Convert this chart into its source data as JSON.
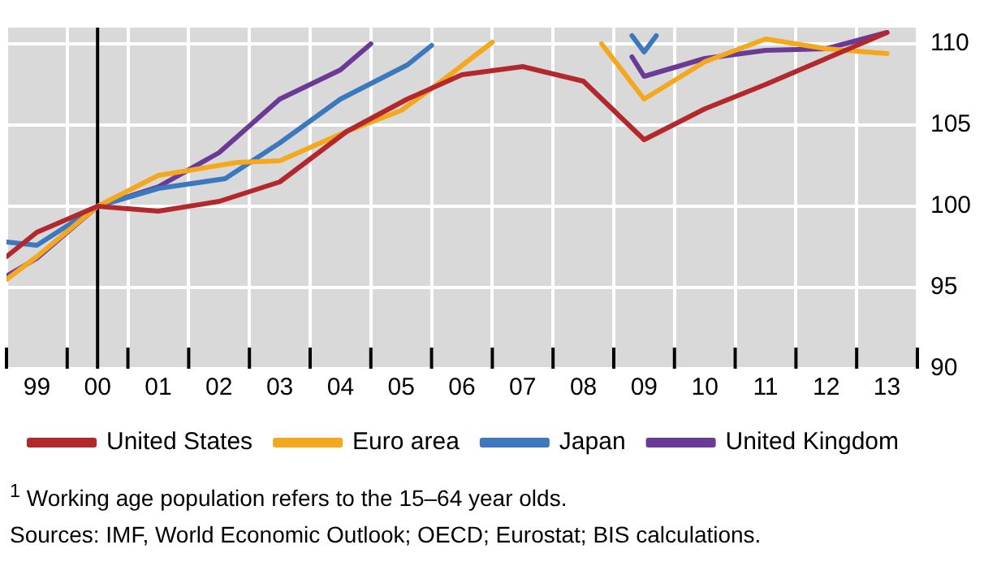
{
  "chart_data": {
    "type": "line",
    "xlim": [
      1998.5,
      2013.5
    ],
    "ylim": [
      90,
      111
    ],
    "xticks": [
      {
        "value": 1998.5,
        "label": null
      },
      {
        "value": 1999,
        "label": "99"
      },
      {
        "value": 1999.5,
        "label": null
      },
      {
        "value": 2000,
        "label": "00"
      },
      {
        "value": 2000.5,
        "label": null
      },
      {
        "value": 2001,
        "label": "01"
      },
      {
        "value": 2001.5,
        "label": null
      },
      {
        "value": 2002,
        "label": "02"
      },
      {
        "value": 2002.5,
        "label": null
      },
      {
        "value": 2003,
        "label": "03"
      },
      {
        "value": 2003.5,
        "label": null
      },
      {
        "value": 2004,
        "label": "04"
      },
      {
        "value": 2004.5,
        "label": null
      },
      {
        "value": 2005,
        "label": "05"
      },
      {
        "value": 2005.5,
        "label": null
      },
      {
        "value": 2006,
        "label": "06"
      },
      {
        "value": 2006.5,
        "label": null
      },
      {
        "value": 2007,
        "label": "07"
      },
      {
        "value": 2007.5,
        "label": null
      },
      {
        "value": 2008,
        "label": "08"
      },
      {
        "value": 2008.5,
        "label": null
      },
      {
        "value": 2009,
        "label": "09"
      },
      {
        "value": 2009.5,
        "label": null
      },
      {
        "value": 2010,
        "label": "10"
      },
      {
        "value": 2010.5,
        "label": null
      },
      {
        "value": 2011,
        "label": "11"
      },
      {
        "value": 2011.5,
        "label": null
      },
      {
        "value": 2012,
        "label": "12"
      },
      {
        "value": 2012.5,
        "label": null
      },
      {
        "value": 2013,
        "label": "13"
      },
      {
        "value": 2013.5,
        "label": null
      }
    ],
    "yticks": [
      90,
      95,
      100,
      105,
      110
    ],
    "grid": true,
    "legend": "bottom",
    "marker": "none",
    "line_style": "solid",
    "ref_lines": [
      {
        "axis": "x",
        "value": 2000,
        "color": "#000000"
      }
    ],
    "series": [
      {
        "name": "United States",
        "color": "#b3282d",
        "x": [
          1998.5,
          1999,
          2000,
          2001,
          2002,
          2003,
          2004.1,
          2005.1,
          2006,
          2007,
          2008,
          2009,
          2010,
          2011,
          2012,
          2013
        ],
        "values": [
          96.9,
          98.4,
          100,
          99.7,
          100.3,
          101.5,
          104.6,
          106.6,
          108.1,
          108.6,
          107.7,
          104.1,
          106,
          107.5,
          109.1,
          110.7
        ]
      },
      {
        "name": "Euro area",
        "color": "#f4a81d",
        "x": [
          1998.5,
          1999,
          2000,
          2001,
          2002.3,
          2003,
          2004.1,
          2005,
          2005.7,
          2006.5,
          2007.5,
          2008.3,
          2009,
          2010,
          2011,
          2012,
          2013
        ],
        "values": [
          95.5,
          96.9,
          100,
          101.9,
          102.7,
          102.8,
          104.6,
          105.9,
          107.8,
          110.1,
          null,
          110,
          106.6,
          108.9,
          110.3,
          109.7,
          109.4
        ]
      },
      {
        "name": "Japan",
        "color": "#3b78bd",
        "x": [
          1998.5,
          1999,
          2000,
          2001,
          2002.1,
          2003,
          2004,
          2005.1,
          2005.5,
          2007,
          2008.8,
          2009,
          2009.2
        ],
        "values": [
          97.8,
          97.6,
          100,
          101.1,
          101.7,
          103.9,
          106.6,
          108.7,
          109.9,
          null,
          110.5,
          109.5,
          110.5
        ]
      },
      {
        "name": "United Kingdom",
        "color": "#6b3a96",
        "x": [
          1998.5,
          1999,
          2000,
          2001,
          2002,
          2003,
          2004,
          2004.5,
          2006.5,
          2008.8,
          2009,
          2010,
          2011,
          2012,
          2013
        ],
        "values": [
          95.7,
          96.8,
          100,
          101.2,
          103.3,
          106.6,
          108.4,
          110,
          null,
          109.2,
          108,
          109.1,
          109.6,
          109.7,
          110.7
        ]
      }
    ],
    "annotations": [
      "$^{1}$  Working age population refers to the 15–64 year olds.",
      "Sources: IMF, World Economic Outlook; OECD; Eurostat; BIS calculations."
    ]
  }
}
